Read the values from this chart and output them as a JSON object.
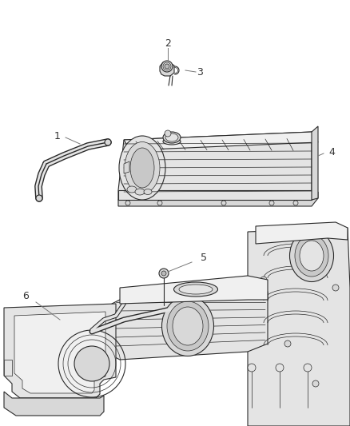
{
  "background_color": "#ffffff",
  "line_color": "#2a2a2a",
  "line_color_light": "#888888",
  "label_color": "#333333",
  "fig_width": 4.38,
  "fig_height": 5.33,
  "dpi": 100,
  "label_fontsize": 9,
  "callout_line_color": "#777777",
  "part_fill": "#f0f0f0",
  "part_fill_dark": "#d8d8d8",
  "part_fill_mid": "#e4e4e4"
}
